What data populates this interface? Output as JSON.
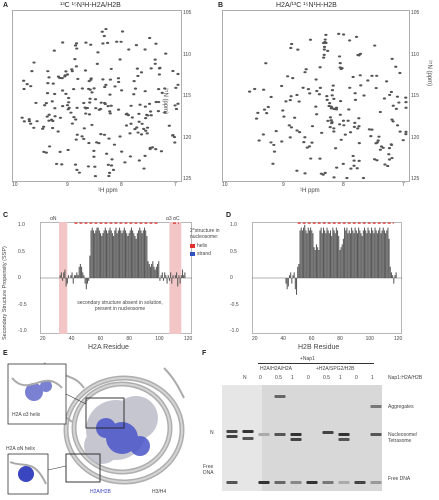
{
  "panels": {
    "A": {
      "letter": "A",
      "title": "¹³C ¹⁵N¹H-H2A/H2B",
      "x_label": "¹H ppm",
      "y_label": "¹⁵N (ppm)",
      "x_ticks": [
        "10",
        "9",
        "8",
        "7"
      ],
      "y_ticks": [
        "105",
        "110",
        "115",
        "120",
        "125"
      ]
    },
    "B": {
      "letter": "B",
      "title": "H2A/¹³C ¹⁵N¹H-H2B",
      "x_label": "¹H ppm",
      "y_label": "¹⁵N (ppm)",
      "x_ticks": [
        "10",
        "9",
        "8",
        "7"
      ],
      "y_ticks": [
        "105",
        "110",
        "115",
        "120",
        "125"
      ]
    },
    "C": {
      "letter": "C",
      "y_label": "Secondary Structure Propensity (SSP)",
      "x_label": "H2A Residue",
      "y_ticks": [
        "1.0",
        "0.5",
        "0",
        "-0.5",
        "-1.0"
      ],
      "x_ticks": [
        "20",
        "40",
        "60",
        "80",
        "100",
        "120"
      ],
      "region_labels": [
        "αN",
        "α3 αC"
      ],
      "legend_title": "2°structure in nucleosome:",
      "legend_items": [
        {
          "label": "helix",
          "color": "#e03030"
        },
        {
          "label": "strand",
          "color": "#3050c0"
        }
      ],
      "annotation": "secondary structure absent in solution, present in nucleosome"
    },
    "D": {
      "letter": "D",
      "x_label": "H2B Residue",
      "y_ticks": [
        "1.0",
        "0.5",
        "0",
        "-0.5",
        "-1.0"
      ],
      "x_ticks": [
        "20",
        "40",
        "60",
        "80",
        "100",
        "120"
      ]
    },
    "E": {
      "letter": "E",
      "labels": [
        "H2A/H2B",
        "H3/H4"
      ],
      "inset_labels": [
        "H2A αN helix",
        "H2A α3 helix"
      ]
    },
    "F": {
      "letter": "F",
      "header_top": "+Nap1",
      "group_labels": [
        "H2A/H2A/H2A",
        "+H2A/SPG2/H2B"
      ],
      "lane_labels": [
        "N",
        "0",
        "0.5",
        "1",
        "0",
        "0.5",
        "1",
        "0",
        "1"
      ],
      "ratio_label": "Nap1:H2A/H2B",
      "side_left": [
        "N",
        "Free DNA"
      ],
      "side_right": [
        "Aggregates",
        "Nucleosome/ Tetrasome",
        "Free DNA"
      ]
    }
  },
  "chart_data": [
    {
      "panel": "C",
      "type": "bar",
      "xlabel": "H2A Residue",
      "ylabel": "Secondary Structure Propensity (SSP)",
      "ylim": [
        -1.0,
        1.0
      ],
      "xlim": [
        1,
        129
      ],
      "x_start": 18,
      "values": [
        0.05,
        0.1,
        -0.05,
        0.1,
        0.15,
        -0.15,
        -0.1,
        0.05,
        0.0,
        0.05,
        0.1,
        -0.1,
        0.05,
        0.05,
        0.1,
        0.05,
        0.2,
        0.25,
        0.2,
        0.1,
        0.05,
        -0.1,
        -0.2,
        -0.1,
        -0.05,
        0.4,
        0.85,
        0.9,
        0.85,
        0.8,
        0.85,
        0.9,
        0.9,
        0.85,
        0.8,
        0.75,
        0.8,
        0.85,
        0.9,
        0.85,
        0.8,
        0.85,
        0.9,
        0.85,
        0.8,
        0.75,
        0.85,
        0.9,
        0.8,
        0.85,
        0.9,
        0.85,
        0.8,
        0.85,
        0.9,
        0.85,
        0.8,
        0.75,
        0.8,
        0.85,
        0.9,
        0.85,
        0.8,
        0.75,
        0.7,
        0.8,
        0.85,
        0.9,
        0.85,
        0.8,
        0.85,
        0.9,
        0.85,
        0.75,
        0.3,
        0.25,
        0.2,
        0.25,
        0.3,
        0.2,
        0.15,
        0.2,
        0.25,
        0.3,
        -0.05,
        0.05,
        0.1,
        -0.05,
        0.1,
        0.05,
        -0.1,
        0.05,
        -0.05,
        0.1,
        -0.1,
        0.05,
        0.0,
        0.05,
        0.1,
        -0.15,
        0.05,
        -0.1,
        0.05,
        0.15,
        0.05,
        0.1
      ],
      "shaded_ranges": [
        [
          17,
          24
        ],
        [
          110,
          120
        ]
      ],
      "helix_segments": [
        [
          30,
          100
        ],
        [
          113,
          118
        ]
      ]
    },
    {
      "panel": "D",
      "type": "bar",
      "xlabel": "H2B Residue",
      "ylim": [
        -1.0,
        1.0
      ],
      "xlim": [
        1,
        129
      ],
      "x_start": 30,
      "values": [
        -0.1,
        -0.2,
        -0.15,
        0.05,
        0.1,
        -0.1,
        0.05,
        0.1,
        -0.2,
        -0.3,
        0.2,
        0.25,
        0.85,
        0.9,
        0.85,
        0.9,
        0.95,
        0.85,
        0.8,
        0.9,
        0.85,
        0.9,
        0.85,
        0.8,
        0.55,
        0.5,
        0.6,
        0.55,
        0.5,
        0.85,
        0.9,
        0.8,
        0.9,
        0.85,
        0.8,
        0.9,
        0.85,
        0.8,
        0.85,
        0.75,
        0.9,
        0.85,
        0.8,
        0.9,
        0.85,
        0.75,
        0.5,
        0.55,
        0.6,
        0.7,
        0.9,
        0.85,
        0.9,
        0.8,
        0.85,
        0.8,
        0.9,
        0.85,
        0.8,
        0.9,
        0.85,
        0.8,
        0.9,
        0.85,
        0.8,
        0.75,
        0.85,
        0.9,
        0.85,
        0.8,
        0.9,
        0.85,
        0.8,
        0.9,
        0.85,
        0.8,
        0.9,
        0.85,
        0.8,
        0.85,
        0.9,
        0.8,
        0.85,
        0.9,
        0.85,
        0.8,
        0.85,
        0.9,
        0.7,
        0.2,
        0.1,
        0.05,
        -0.1,
        0.05,
        0.1
      ],
      "helix_segments": [
        [
          40,
          122
        ]
      ]
    }
  ]
}
